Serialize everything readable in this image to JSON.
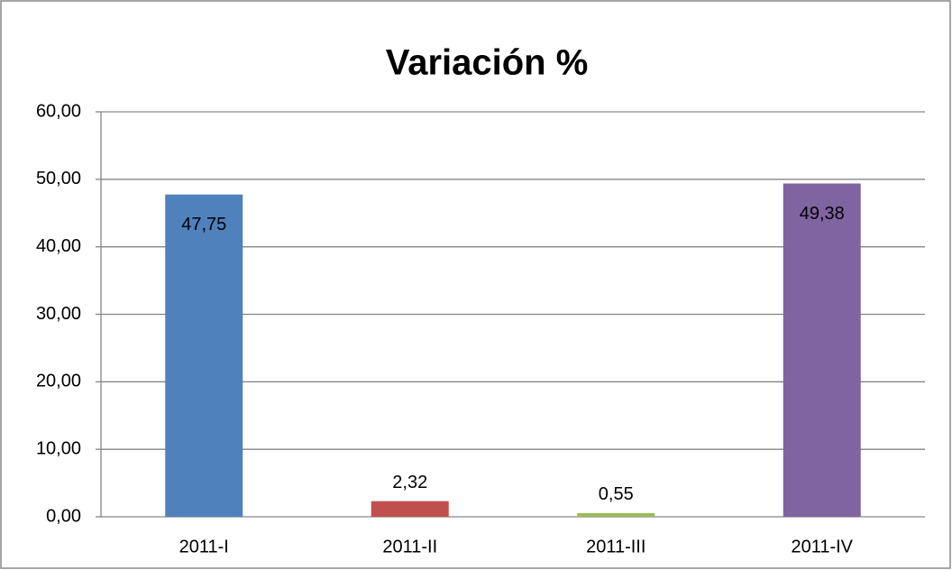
{
  "chart_data": {
    "type": "bar",
    "title": "Variación %",
    "categories": [
      "2011-I",
      "2011-II",
      "2011-III",
      "2011-IV"
    ],
    "values": [
      47.75,
      2.32,
      0.55,
      49.38
    ],
    "value_labels": [
      "47,75",
      "2,32",
      "0,55",
      "49,38"
    ],
    "colors": [
      "#4f81bd",
      "#c0504d",
      "#9bbb59",
      "#8064a2"
    ],
    "ylim": [
      0,
      60
    ],
    "yticks": [
      {
        "value": 0,
        "label": "0,00"
      },
      {
        "value": 10,
        "label": "10,00"
      },
      {
        "value": 20,
        "label": "20,00"
      },
      {
        "value": 30,
        "label": "30,00"
      },
      {
        "value": 40,
        "label": "40,00"
      },
      {
        "value": 50,
        "label": "50,00"
      },
      {
        "value": 60,
        "label": "60,00"
      }
    ],
    "grid": true
  }
}
